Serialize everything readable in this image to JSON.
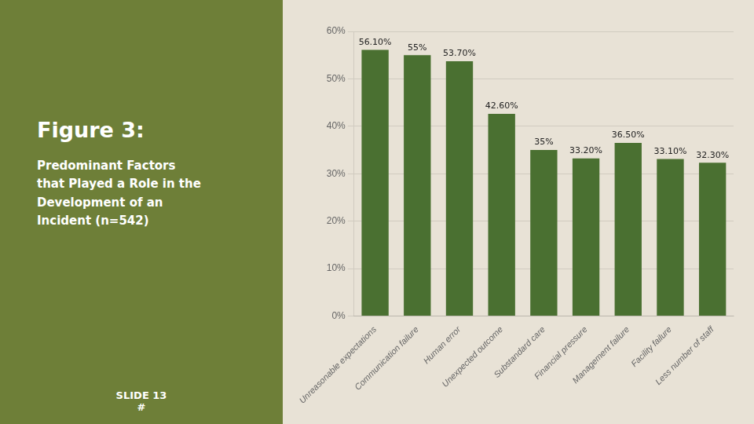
{
  "chart_data": {
    "type": "bar",
    "title": "Figure 3:",
    "subtitle": "Predominant Factors\nthat Played a Role in the\nDevelopment of an\nIncident (n=542)",
    "annotations": [
      "SLIDE  13\n#"
    ],
    "categories": [
      "Unreasonable expectations",
      "Communication failure",
      "Human error",
      "Unexpected outcome",
      "Substandard care",
      "Financial pressure",
      "Management failure",
      "Facility failure",
      "Less number of staff"
    ],
    "values": [
      56.1,
      55.0,
      53.7,
      42.6,
      35.0,
      33.2,
      36.5,
      33.1,
      32.3
    ],
    "value_labels": [
      "56.10%",
      "55%",
      "53.70%",
      "42.60%",
      "35%",
      "33.20%",
      "36.50%",
      "33.10%",
      "32.30%"
    ],
    "data_labels": true,
    "color": "#4a7031",
    "ylim": [
      0,
      60
    ],
    "yticks": [
      {
        "value": 0,
        "label": "0%"
      },
      {
        "value": 10,
        "label": "10%"
      },
      {
        "value": 20,
        "label": "20%"
      },
      {
        "value": 30,
        "label": "30%"
      },
      {
        "value": 40,
        "label": "40%"
      },
      {
        "value": 50,
        "label": "50%"
      },
      {
        "value": 60,
        "label": "60%"
      }
    ],
    "grid": true
  }
}
